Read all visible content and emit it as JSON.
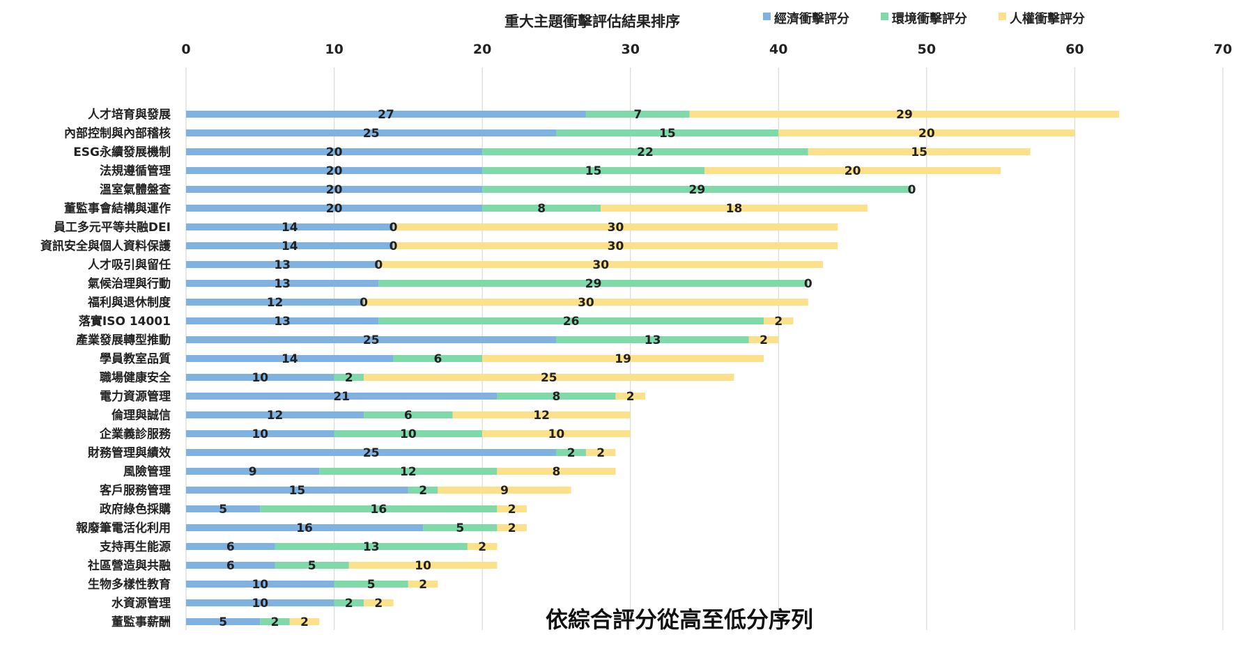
{
  "chart_data": {
    "type": "bar",
    "orientation": "horizontal",
    "stacked": true,
    "title": "重大主題衝擊評估結果排序",
    "annotation": "依綜合評分從高至低分序列",
    "xlim": [
      0,
      70
    ],
    "x_ticks": [
      "0",
      "10",
      "20",
      "30",
      "40",
      "50",
      "60",
      "70"
    ],
    "x_tick_values": [
      0,
      10,
      20,
      30,
      40,
      50,
      60,
      70
    ],
    "grid": true,
    "legend_position": "top-right",
    "categories": [
      "人才培育與發展",
      "內部控制與內部稽核",
      "ESG永續發展機制",
      "法規遵循管理",
      "溫室氣體盤查",
      "董監事會結構與運作",
      "員工多元平等共融DEI",
      "資訊安全與個人資料保護",
      "人才吸引與留任",
      "氣候治理與行動",
      "福利與退休制度",
      "落實ISO 14001",
      "產業發展轉型推動",
      "學員教室品質",
      "職場健康安全",
      "電力資源管理",
      "倫理與誠信",
      "企業義診服務",
      "財務管理與績效",
      "風險管理",
      "客戶服務管理",
      "政府綠色採購",
      "報廢筆電活化利用",
      "支持再生能源",
      "社區營造與共融",
      "生物多樣性教育",
      "水資源管理",
      "董監事薪酬"
    ],
    "series": [
      {
        "name": "經濟衝擊評分",
        "color": "#7fb2e0",
        "values": [
          27,
          25,
          20,
          20,
          20,
          20,
          14,
          14,
          13,
          13,
          12,
          13,
          25,
          14,
          10,
          21,
          12,
          10,
          25,
          9,
          15,
          5,
          16,
          6,
          6,
          10,
          10,
          5
        ]
      },
      {
        "name": "環境衝擊評分",
        "color": "#80d9a8",
        "values": [
          7,
          15,
          22,
          15,
          29,
          8,
          0,
          0,
          0,
          29,
          0,
          26,
          13,
          6,
          2,
          8,
          6,
          10,
          2,
          12,
          2,
          16,
          5,
          13,
          5,
          5,
          2,
          2
        ]
      },
      {
        "name": "人權衝擊評分",
        "color": "#fde08a",
        "values": [
          29,
          20,
          15,
          20,
          0,
          18,
          30,
          30,
          30,
          0,
          30,
          2,
          2,
          19,
          25,
          2,
          12,
          10,
          2,
          8,
          9,
          2,
          2,
          2,
          10,
          2,
          2,
          2
        ]
      }
    ]
  }
}
